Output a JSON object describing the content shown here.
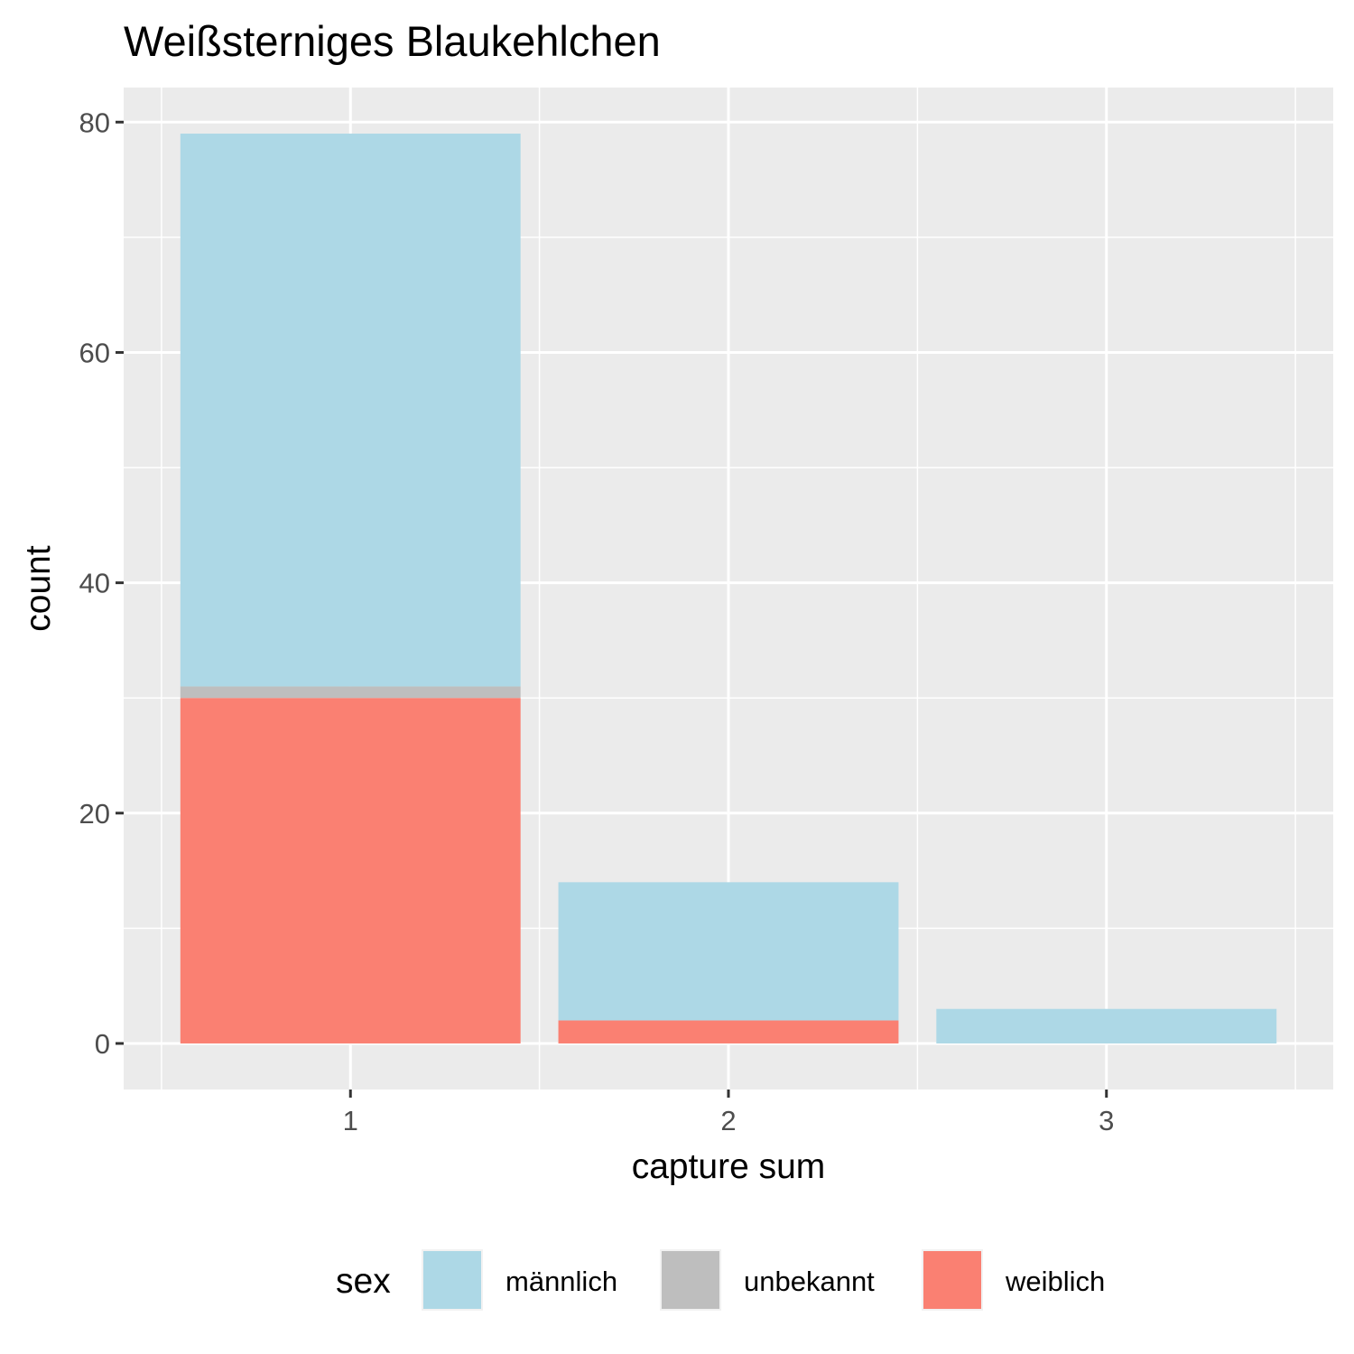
{
  "chart_data": {
    "type": "bar",
    "stacked": true,
    "title": "Weißsterniges Blaukehlchen",
    "xlabel": "capture sum",
    "ylabel": "count",
    "categories": [
      "1",
      "2",
      "3"
    ],
    "ylim": [
      -4,
      83
    ],
    "yticks": [
      0,
      20,
      40,
      60,
      80
    ],
    "grid": true,
    "legend_position": "bottom",
    "legend_title": "sex",
    "series": [
      {
        "name": "weiblich",
        "color": "#fa8072",
        "values": [
          30,
          2,
          0
        ]
      },
      {
        "name": "unbekannt",
        "color": "#bebebe",
        "values": [
          1,
          0,
          0
        ]
      },
      {
        "name": "männlich",
        "color": "#add8e6",
        "values": [
          48,
          12,
          3
        ]
      }
    ],
    "legend_order": [
      "männlich",
      "unbekannt",
      "weiblich"
    ]
  }
}
